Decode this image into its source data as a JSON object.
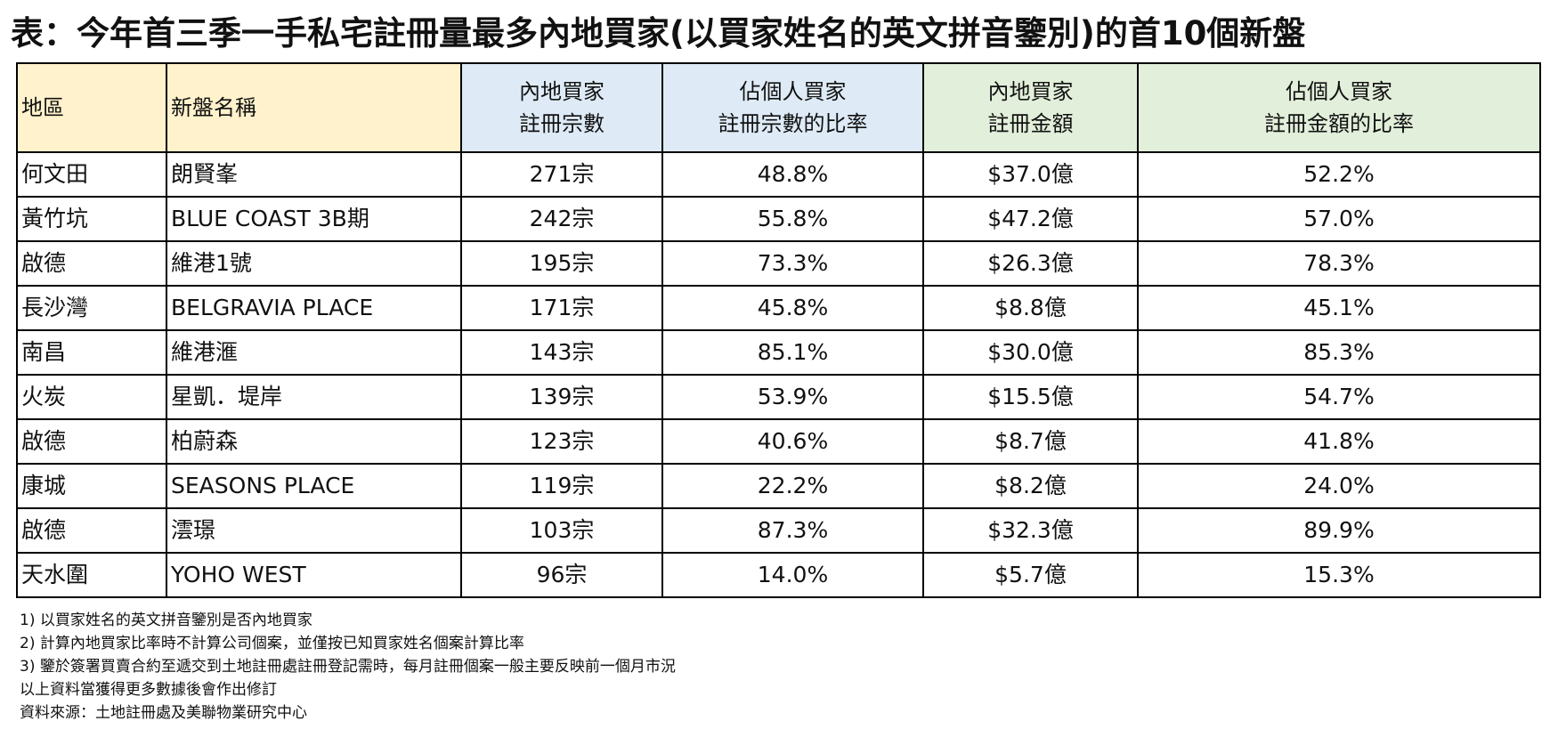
{
  "title": "表：今年首三季一手私宅註冊量最多內地買家(以買家姓名的英文拼音鑒別)的首10個新盤",
  "table": {
    "headers": {
      "district": "地區",
      "project": "新盤名稱",
      "count_line1": "內地買家",
      "count_line2": "註冊宗數",
      "count_ratio_line1": "佔個人買家",
      "count_ratio_line2": "註冊宗數的比率",
      "amount_line1": "內地買家",
      "amount_line2": "註冊金額",
      "amount_ratio_line1": "佔個人買家",
      "amount_ratio_line2": "註冊金額的比率"
    },
    "rows": [
      {
        "district": "何文田",
        "project": "朗賢峯",
        "count": "271宗",
        "count_ratio": "48.8%",
        "amount": "$37.0億",
        "amount_ratio": "52.2%"
      },
      {
        "district": "黃竹坑",
        "project": "BLUE COAST 3B期",
        "count": "242宗",
        "count_ratio": "55.8%",
        "amount": "$47.2億",
        "amount_ratio": "57.0%"
      },
      {
        "district": "啟德",
        "project": "維港1號",
        "count": "195宗",
        "count_ratio": "73.3%",
        "amount": "$26.3億",
        "amount_ratio": "78.3%"
      },
      {
        "district": "長沙灣",
        "project": "BELGRAVIA PLACE",
        "count": "171宗",
        "count_ratio": "45.8%",
        "amount": "$8.8億",
        "amount_ratio": "45.1%"
      },
      {
        "district": "南昌",
        "project": "維港滙",
        "count": "143宗",
        "count_ratio": "85.1%",
        "amount": "$30.0億",
        "amount_ratio": "85.3%"
      },
      {
        "district": "火炭",
        "project": "星凱．堤岸",
        "count": "139宗",
        "count_ratio": "53.9%",
        "amount": "$15.5億",
        "amount_ratio": "54.7%"
      },
      {
        "district": "啟德",
        "project": "柏蔚森",
        "count": "123宗",
        "count_ratio": "40.6%",
        "amount": "$8.7億",
        "amount_ratio": "41.8%"
      },
      {
        "district": "康城",
        "project": "SEASONS PLACE",
        "count": "119宗",
        "count_ratio": "22.2%",
        "amount": "$8.2億",
        "amount_ratio": "24.0%"
      },
      {
        "district": "啟德",
        "project": "澐璟",
        "count": "103宗",
        "count_ratio": "87.3%",
        "amount": "$32.3億",
        "amount_ratio": "89.9%"
      },
      {
        "district": "天水圍",
        "project": "YOHO WEST",
        "count": "96宗",
        "count_ratio": "14.0%",
        "amount": "$5.7億",
        "amount_ratio": "15.3%"
      }
    ]
  },
  "notes": {
    "n1": "1) 以買家姓名的英文拼音鑒別是否內地買家",
    "n2": "2) 計算內地買家比率時不計算公司個案，並僅按已知買家姓名個案計算比率",
    "n3": "3) 鑒於簽署買賣合約至遞交到土地註冊處註冊登記需時，每月註冊個案一般主要反映前一個月市況",
    "n4": "以上資料當獲得更多數據後會作出修訂",
    "source": "資料來源：土地註冊處及美聯物業研究中心"
  },
  "colors": {
    "header_yellow": "#fff2cc",
    "header_blue": "#deebf7",
    "header_green": "#e2efda"
  }
}
